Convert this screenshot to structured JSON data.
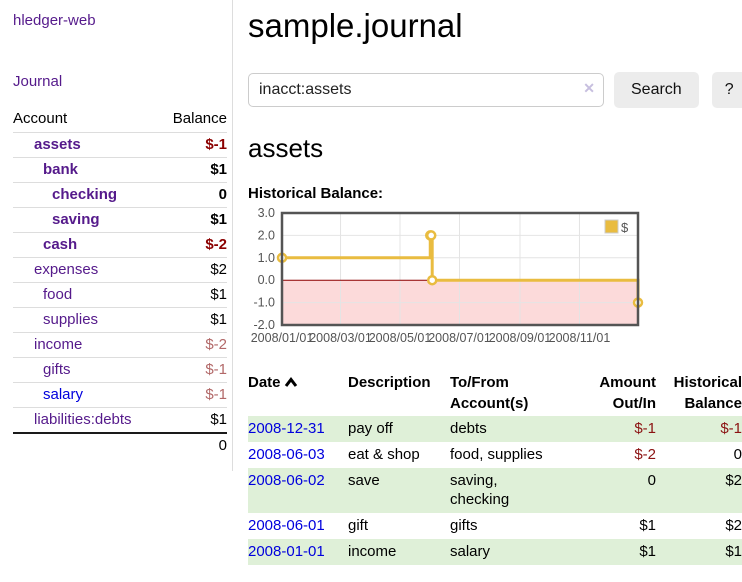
{
  "app": {
    "title": "hledger-web"
  },
  "sidebar": {
    "journal_label": "Journal",
    "table": {
      "account_header": "Account",
      "balance_header": "Balance",
      "accounts": [
        {
          "name": "assets",
          "indent": 1,
          "bold": true,
          "link_style": "purple",
          "balance": "$-1",
          "balance_style": "neg-strong"
        },
        {
          "name": "bank",
          "indent": 2,
          "bold": true,
          "link_style": "purple",
          "balance": "$1",
          "balance_style": ""
        },
        {
          "name": "checking",
          "indent": 3,
          "bold": true,
          "link_style": "purple",
          "balance": "0",
          "balance_style": ""
        },
        {
          "name": "saving",
          "indent": 3,
          "bold": true,
          "link_style": "purple",
          "balance": "$1",
          "balance_style": ""
        },
        {
          "name": "cash",
          "indent": 2,
          "bold": true,
          "link_style": "purple",
          "balance": "$-2",
          "balance_style": "neg-strong"
        },
        {
          "name": "expenses",
          "indent": 1,
          "bold": false,
          "link_style": "purple",
          "balance": "$2",
          "balance_style": ""
        },
        {
          "name": "food",
          "indent": 2,
          "bold": false,
          "link_style": "purple",
          "balance": "$1",
          "balance_style": ""
        },
        {
          "name": "supplies",
          "indent": 2,
          "bold": false,
          "link_style": "purple",
          "balance": "$1",
          "balance_style": ""
        },
        {
          "name": "income",
          "indent": 1,
          "bold": false,
          "link_style": "purple",
          "balance": "$-2",
          "balance_style": "neg-soft"
        },
        {
          "name": "gifts",
          "indent": 2,
          "bold": false,
          "link_style": "purple",
          "balance": "$-1",
          "balance_style": "neg-soft"
        },
        {
          "name": "salary",
          "indent": 2,
          "bold": false,
          "link_style": "blue",
          "balance": "$-1",
          "balance_style": "neg-soft"
        },
        {
          "name": "liabilities:debts",
          "indent": 1,
          "bold": false,
          "link_style": "purple",
          "balance": "$1",
          "balance_style": ""
        }
      ],
      "total": "0"
    }
  },
  "header": {
    "title": "sample.journal"
  },
  "search": {
    "value": "inacct:assets",
    "clear_glyph": "✕",
    "clear_icon": "clear-x-icon",
    "button_label": "Search",
    "help_label": "?"
  },
  "account_page": {
    "heading": "assets",
    "chart_label": "Historical Balance:"
  },
  "chart_data": {
    "type": "line",
    "step": true,
    "title": "Historical Balance:",
    "series": [
      {
        "name": "$",
        "color": "#e9bc40",
        "points": [
          [
            "2008-01-01",
            1
          ],
          [
            "2008-06-01",
            2
          ],
          [
            "2008-06-02",
            2
          ],
          [
            "2008-06-03",
            0
          ],
          [
            "2008-12-31",
            -1
          ]
        ]
      }
    ],
    "x_range": [
      "2008-01-01",
      "2008-12-31"
    ],
    "y_range": [
      -2,
      3
    ],
    "y_ticks": [
      3,
      2,
      1,
      0,
      -1,
      -2
    ],
    "x_ticks": [
      {
        "date": "2008-01-01",
        "label": "2008/01/01"
      },
      {
        "date": "2008-03-01",
        "label": "2008/03/01"
      },
      {
        "date": "2008-05-01",
        "label": "2008/05/01"
      },
      {
        "date": "2008-07-01",
        "label": "2008/07/01"
      },
      {
        "date": "2008-09-01",
        "label": "2008/09/01"
      },
      {
        "date": "2008-11-01",
        "label": "2008/11/01"
      }
    ],
    "legend": {
      "label": "$",
      "position": "top-right"
    },
    "grid": true,
    "negative_region_color": "#fcdada",
    "zero_line_color": "#8b0000",
    "border_color": "#545454",
    "tick_label_color": "#545454"
  },
  "register": {
    "headers": {
      "date": "Date",
      "sort_icon": "chevron-up",
      "description": "Description",
      "accounts": "To/From Account(s)",
      "amount": "Amount Out/In",
      "balance": "Historical Balance"
    },
    "rows": [
      {
        "date": "2008-12-31",
        "description": "pay off",
        "accounts": "debts",
        "amount": "$-1",
        "amount_style": "neg",
        "balance": "$-1",
        "balance_style": "neg",
        "highlight": true
      },
      {
        "date": "2008-06-03",
        "description": "eat & shop",
        "accounts": "food, supplies",
        "amount": "$-2",
        "amount_style": "neg",
        "balance": "0",
        "balance_style": "",
        "highlight": false
      },
      {
        "date": "2008-06-02",
        "description": "save",
        "accounts": "saving, checking",
        "amount": "0",
        "amount_style": "",
        "balance": "$2",
        "balance_style": "",
        "highlight": true
      },
      {
        "date": "2008-06-01",
        "description": "gift",
        "accounts": "gifts",
        "amount": "$1",
        "amount_style": "",
        "balance": "$2",
        "balance_style": "",
        "highlight": false
      },
      {
        "date": "2008-01-01",
        "description": "income",
        "accounts": "salary",
        "amount": "$1",
        "amount_style": "",
        "balance": "$1",
        "balance_style": "",
        "highlight": true
      }
    ]
  },
  "colors": {
    "link_purple": "#551a8b",
    "link_blue": "#0000dd",
    "negative_strong": "#8b0000",
    "negative_soft": "#b26868",
    "row_highlight_green": "#dff0d8",
    "chart_line_gold": "#e9bc40",
    "sidebar_divider": "#dddddd"
  }
}
